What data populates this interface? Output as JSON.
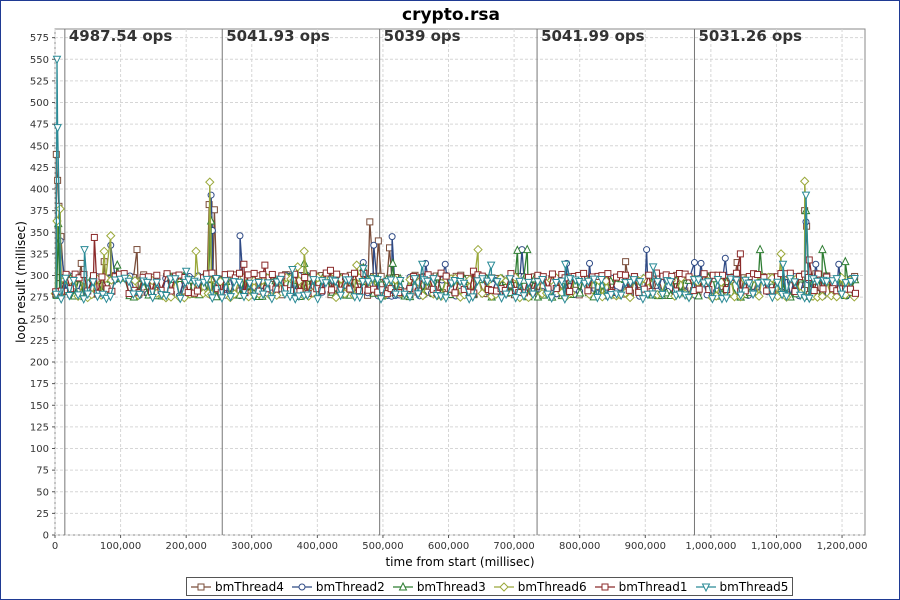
{
  "chart_data": {
    "type": "line",
    "title": "crypto.rsa",
    "xlabel": "time from start (millisec)",
    "ylabel": "loop result (millisec)",
    "xlim": [
      0,
      1235000
    ],
    "ylim": [
      0,
      585
    ],
    "x_ticks": [
      0,
      100000,
      200000,
      300000,
      400000,
      500000,
      600000,
      700000,
      800000,
      900000,
      1000000,
      1100000,
      1200000
    ],
    "x_tick_labels": [
      "0",
      "100,000",
      "200,000",
      "300,000",
      "400,000",
      "500,000",
      "600,000",
      "700,000",
      "800,000",
      "900,000",
      "1,000,000",
      "1,100,000",
      "1,200,000"
    ],
    "y_ticks": [
      0,
      25,
      50,
      75,
      100,
      125,
      150,
      175,
      200,
      225,
      250,
      275,
      300,
      325,
      350,
      375,
      400,
      425,
      450,
      475,
      500,
      525,
      550,
      575
    ],
    "y_tick_labels": [
      "0",
      "25",
      "50",
      "75",
      "100",
      "125",
      "150",
      "175",
      "200",
      "225",
      "250",
      "275",
      "300",
      "325",
      "350",
      "375",
      "400",
      "425",
      "450",
      "475",
      "500",
      "525",
      "550",
      "575"
    ],
    "grid": true,
    "legend_position": "bottom",
    "interval_boundaries": [
      15000,
      255000,
      495000,
      735000,
      975000
    ],
    "interval_labels": [
      {
        "x": 15000,
        "text": "4987.54 ops"
      },
      {
        "x": 255000,
        "text": "5041.93 ops"
      },
      {
        "x": 495000,
        "text": "5039 ops"
      },
      {
        "x": 735000,
        "text": "5041.99 ops"
      },
      {
        "x": 975000,
        "text": "5031.26 ops"
      }
    ],
    "series": [
      {
        "name": "bmThread4",
        "color": "#7a4d3a",
        "marker": "square",
        "baseline": 287,
        "spikes": [
          [
            2000,
            440
          ],
          [
            4000,
            410
          ],
          [
            6000,
            380
          ],
          [
            9000,
            345
          ],
          [
            40000,
            314
          ],
          [
            75000,
            316
          ],
          [
            125000,
            330
          ],
          [
            235000,
            382
          ],
          [
            243000,
            376
          ],
          [
            480000,
            362
          ],
          [
            493000,
            340
          ],
          [
            510000,
            332
          ],
          [
            870000,
            316
          ],
          [
            1040000,
            315
          ],
          [
            1143000,
            375
          ],
          [
            1146000,
            357
          ],
          [
            1160000,
            302
          ]
        ]
      },
      {
        "name": "bmThread2",
        "color": "#2f4a85",
        "marker": "circle",
        "baseline": 286,
        "spikes": [
          [
            8000,
            340
          ],
          [
            85000,
            335
          ],
          [
            238000,
            393
          ],
          [
            240000,
            352
          ],
          [
            282000,
            346
          ],
          [
            470000,
            315
          ],
          [
            486000,
            335
          ],
          [
            514000,
            345
          ],
          [
            565000,
            314
          ],
          [
            595000,
            313
          ],
          [
            712000,
            330
          ],
          [
            780000,
            314
          ],
          [
            815000,
            314
          ],
          [
            902000,
            330
          ],
          [
            975000,
            315
          ],
          [
            985000,
            314
          ],
          [
            1022000,
            320
          ],
          [
            1145000,
            362
          ],
          [
            1160000,
            313
          ],
          [
            1195000,
            313
          ]
        ]
      },
      {
        "name": "bmThread3",
        "color": "#2e7d32",
        "marker": "triangle",
        "baseline": 285,
        "spikes": [
          [
            5000,
            360
          ],
          [
            95000,
            312
          ],
          [
            238000,
            363
          ],
          [
            380000,
            314
          ],
          [
            470000,
            309
          ],
          [
            515000,
            314
          ],
          [
            705000,
            329
          ],
          [
            720000,
            330
          ],
          [
            1075000,
            330
          ],
          [
            1145000,
            375
          ],
          [
            1170000,
            330
          ],
          [
            1205000,
            316
          ]
        ]
      },
      {
        "name": "bmThread6",
        "color": "#9aa83a",
        "marker": "diamond",
        "baseline": 284,
        "spikes": [
          [
            3000,
            363
          ],
          [
            8000,
            377
          ],
          [
            85000,
            346
          ],
          [
            75000,
            328
          ],
          [
            215000,
            328
          ],
          [
            236000,
            408
          ],
          [
            370000,
            310
          ],
          [
            380000,
            328
          ],
          [
            460000,
            312
          ],
          [
            645000,
            330
          ],
          [
            1107000,
            325
          ],
          [
            1143000,
            409
          ]
        ]
      },
      {
        "name": "bmThread1",
        "color": "#8b2a2a",
        "marker": "square",
        "baseline": 289,
        "spikes": [
          [
            60000,
            344
          ],
          [
            288000,
            313
          ],
          [
            320000,
            312
          ],
          [
            420000,
            306
          ],
          [
            638000,
            305
          ],
          [
            1045000,
            325
          ],
          [
            1150000,
            318
          ]
        ]
      },
      {
        "name": "bmThread5",
        "color": "#2a8a96",
        "marker": "triangle-down",
        "baseline": 283,
        "spikes": [
          [
            3000,
            550
          ],
          [
            4000,
            471
          ],
          [
            45000,
            330
          ],
          [
            200000,
            305
          ],
          [
            362000,
            307
          ],
          [
            470000,
            308
          ],
          [
            560000,
            313
          ],
          [
            665000,
            312
          ],
          [
            778000,
            313
          ],
          [
            912000,
            310
          ],
          [
            1145000,
            393
          ],
          [
            1110000,
            313
          ]
        ]
      }
    ]
  }
}
